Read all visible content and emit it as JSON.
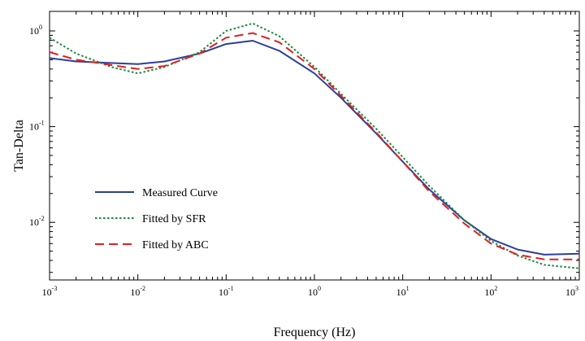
{
  "chart_data": {
    "type": "line",
    "xlabel": "Frequency (Hz)",
    "ylabel": "Tan-Delta",
    "xscale": "log",
    "yscale": "log",
    "xlim": [
      0.001,
      1000
    ],
    "ylim": [
      0.0025,
      1.6
    ],
    "grid": false,
    "legend_position": "left-middle",
    "x_ticks": [
      {
        "base": "10",
        "exp": "-3",
        "value": 0.001
      },
      {
        "base": "10",
        "exp": "-2",
        "value": 0.01
      },
      {
        "base": "10",
        "exp": "-1",
        "value": 0.1
      },
      {
        "base": "10",
        "exp": "0",
        "value": 1
      },
      {
        "base": "10",
        "exp": "1",
        "value": 10
      },
      {
        "base": "10",
        "exp": "2",
        "value": 100
      },
      {
        "base": "10",
        "exp": "3",
        "value": 1000
      }
    ],
    "y_ticks": [
      {
        "base": "10",
        "exp": "0",
        "value": 1
      },
      {
        "base": "10",
        "exp": "-1",
        "value": 0.1
      },
      {
        "base": "10",
        "exp": "-2",
        "value": 0.01
      }
    ],
    "series": [
      {
        "name": "Measured Curve",
        "color": "#2c3e9e",
        "style": "solid",
        "x": [
          0.001,
          0.002,
          0.01,
          0.02,
          0.05,
          0.1,
          0.2,
          0.4,
          1,
          2,
          5,
          10,
          20,
          50,
          100,
          200,
          400,
          1000
        ],
        "y": [
          0.52,
          0.48,
          0.45,
          0.48,
          0.58,
          0.73,
          0.79,
          0.62,
          0.36,
          0.2,
          0.085,
          0.043,
          0.022,
          0.0105,
          0.0067,
          0.0052,
          0.0046,
          0.0047
        ]
      },
      {
        "name": "Fitted by SFR",
        "color": "#1a8a3a",
        "style": "dotted",
        "x": [
          0.001,
          0.002,
          0.005,
          0.01,
          0.02,
          0.05,
          0.1,
          0.2,
          0.4,
          1,
          2,
          5,
          10,
          20,
          50,
          100,
          200,
          400,
          1000
        ],
        "y": [
          0.85,
          0.58,
          0.42,
          0.36,
          0.42,
          0.6,
          1.0,
          1.2,
          0.88,
          0.42,
          0.22,
          0.095,
          0.048,
          0.024,
          0.0105,
          0.0064,
          0.0045,
          0.0036,
          0.0033
        ]
      },
      {
        "name": "Fitted by ABC",
        "color": "#e02020",
        "style": "dashed",
        "x": [
          0.001,
          0.002,
          0.01,
          0.02,
          0.05,
          0.1,
          0.2,
          0.4,
          1,
          2,
          5,
          10,
          20,
          50,
          100,
          200,
          400,
          1000
        ],
        "y": [
          0.6,
          0.5,
          0.4,
          0.43,
          0.58,
          0.85,
          0.95,
          0.76,
          0.4,
          0.21,
          0.087,
          0.043,
          0.021,
          0.0097,
          0.006,
          0.0046,
          0.0041,
          0.0041
        ]
      }
    ]
  }
}
